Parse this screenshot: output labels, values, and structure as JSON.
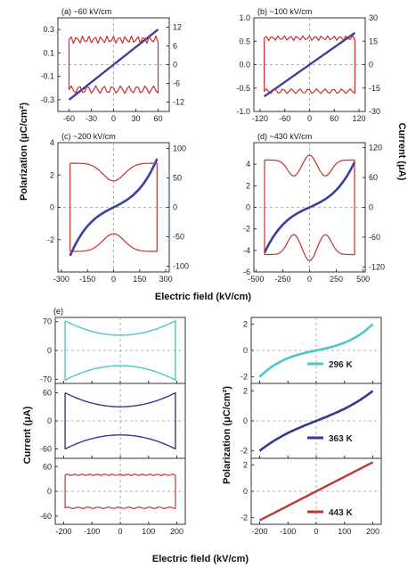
{
  "colors": {
    "blue": "#3b3fa0",
    "red": "#c0332f",
    "cyan": "#4cc6c9",
    "navy": "#363a8f",
    "brick": "#b83a35",
    "left_axis": "#2f3aa0",
    "right_axis": "#c0332f"
  },
  "shared_labels": {
    "top_xlabel": "Electric field (kV/cm)",
    "top_ylabel_left": "Polarization (μC/cm²)",
    "top_ylabel_right": "Current (μA)",
    "bottom_xlabel": "Electric field (kV/cm)",
    "bottom_ylabel_left": "Current (μA)",
    "bottom_ylabel_right": "Polarization (μC/cm²)",
    "panel_e_label": "(e)"
  },
  "chart_data": [
    {
      "id": "a",
      "type": "line",
      "title": "(a) ~60 kV/cm",
      "xlim": [
        -75,
        75
      ],
      "xticks": [
        -60,
        -30,
        0,
        30,
        60
      ],
      "ylim_left": [
        -0.4,
        0.4
      ],
      "yticks_left": [
        -0.3,
        -0.1,
        0.1,
        0.3
      ],
      "yticks_left_labels": [
        "-0.3",
        "-0.1",
        "0.1",
        "0.3"
      ],
      "ylim_right": [
        -15,
        15
      ],
      "yticks_right": [
        -12,
        -6,
        0,
        6,
        12
      ],
      "series": [
        {
          "axis": "left",
          "color": "blue",
          "shape": "linear",
          "x": [
            -60,
            60
          ],
          "y": [
            -0.3,
            0.3
          ]
        },
        {
          "axis": "right",
          "color": "red",
          "shape": "box",
          "emax": 60,
          "imax": 8,
          "ripple": 1.2
        }
      ]
    },
    {
      "id": "b",
      "type": "line",
      "title": "(b) ~100 kV/cm",
      "xlim": [
        -135,
        135
      ],
      "xticks": [
        -120,
        -60,
        0,
        60,
        120
      ],
      "ylim_left": [
        -1,
        1
      ],
      "yticks_left": [
        -1,
        -0.5,
        0,
        0.5,
        1
      ],
      "yticks_left_labels": [
        "-1.0",
        "-0.5",
        "0.0",
        "0.5",
        "1.0"
      ],
      "ylim_right": [
        -30,
        30
      ],
      "yticks_right": [
        -30,
        -15,
        0,
        15,
        30
      ],
      "series": [
        {
          "axis": "left",
          "color": "blue",
          "shape": "linear",
          "x": [
            -110,
            110
          ],
          "y": [
            -0.68,
            0.68
          ]
        },
        {
          "axis": "right",
          "color": "red",
          "shape": "box",
          "emax": 110,
          "imax": 17,
          "ripple": 1.5
        }
      ]
    },
    {
      "id": "c",
      "type": "line",
      "title": "(c) ~200 kV/cm",
      "xlim": [
        -320,
        320
      ],
      "xticks": [
        -300,
        -150,
        0,
        150,
        300
      ],
      "ylim_left": [
        -4,
        4
      ],
      "yticks_left": [
        -2,
        0,
        2,
        4
      ],
      "yticks_left_labels": [
        "-2",
        "0",
        "2",
        "4"
      ],
      "ylim_right": [
        -110,
        110
      ],
      "yticks_right": [
        -100,
        -50,
        0,
        50,
        100
      ],
      "series": [
        {
          "axis": "left",
          "color": "blue",
          "shape": "scurve",
          "x": [
            -250,
            250
          ],
          "y": [
            -3,
            3
          ]
        },
        {
          "axis": "right",
          "color": "red",
          "shape": "bump",
          "emax": 250,
          "imax": 75,
          "bump": 30
        }
      ]
    },
    {
      "id": "d",
      "type": "line",
      "title": "(d) ~430 kV/cm",
      "xlim": [
        -520,
        520
      ],
      "xticks": [
        -500,
        -250,
        0,
        250,
        500
      ],
      "ylim_left": [
        -6,
        6
      ],
      "yticks_left": [
        -6,
        -4,
        -2,
        0,
        2,
        4
      ],
      "yticks_left_labels": [
        "-6",
        "-4",
        "-2",
        "0",
        "2",
        "4"
      ],
      "ylim_right": [
        -130,
        130
      ],
      "yticks_right": [
        -120,
        -60,
        0,
        60,
        120
      ],
      "series": [
        {
          "axis": "left",
          "color": "blue",
          "shape": "scurve",
          "x": [
            -420,
            420
          ],
          "y": [
            -4.2,
            4.2
          ]
        },
        {
          "axis": "right",
          "color": "red",
          "shape": "double",
          "emax": 420,
          "imax": 95,
          "bump": 40
        }
      ]
    },
    {
      "id": "e-current-296",
      "type": "line",
      "xlim": [
        -230,
        230
      ],
      "xticks": [
        -200,
        -100,
        0,
        100,
        200
      ],
      "ylim": [
        -80,
        80
      ],
      "yticks": [
        -70,
        0,
        70
      ],
      "series": [
        {
          "color": "cyan",
          "shape": "bow",
          "emax": 195,
          "imax": 72,
          "dip": 35
        }
      ]
    },
    {
      "id": "e-current-363",
      "type": "line",
      "xlim": [
        -230,
        230
      ],
      "xticks": [
        -200,
        -100,
        0,
        100,
        200
      ],
      "ylim": [
        -80,
        80
      ],
      "yticks": [
        -60,
        0,
        60
      ],
      "series": [
        {
          "color": "navy",
          "shape": "bow",
          "emax": 195,
          "imax": 60,
          "dip": 30
        }
      ]
    },
    {
      "id": "e-current-443",
      "type": "line",
      "xlim": [
        -230,
        230
      ],
      "xticks": [
        -200,
        -100,
        0,
        100,
        200
      ],
      "ylim": [
        -80,
        80
      ],
      "yticks": [
        -60,
        0,
        60
      ],
      "series": [
        {
          "color": "brick",
          "shape": "box",
          "emax": 195,
          "imax": 40,
          "ripple": 2
        }
      ]
    },
    {
      "id": "e-pol-296",
      "type": "line",
      "xlim": [
        -230,
        230
      ],
      "xticks": [
        -200,
        -100,
        0,
        100,
        200
      ],
      "ylim": [
        -2.5,
        2.5
      ],
      "yticks": [
        -2,
        0,
        2
      ],
      "series": [
        {
          "name": "296 K",
          "color": "cyan",
          "shape": "scurve",
          "x": [
            -200,
            200
          ],
          "y": [
            -2,
            2
          ]
        }
      ]
    },
    {
      "id": "e-pol-363",
      "type": "line",
      "xlim": [
        -230,
        230
      ],
      "xticks": [
        -200,
        -100,
        0,
        100,
        200
      ],
      "ylim": [
        -2.5,
        2.5
      ],
      "yticks": [
        -2,
        0,
        2
      ],
      "series": [
        {
          "name": "363 K",
          "color": "navy",
          "shape": "scurve_soft",
          "x": [
            -200,
            200
          ],
          "y": [
            -2,
            2
          ]
        }
      ]
    },
    {
      "id": "e-pol-443",
      "type": "line",
      "xlim": [
        -230,
        230
      ],
      "xticks": [
        -200,
        -100,
        0,
        100,
        200
      ],
      "ylim": [
        -2.5,
        2.5
      ],
      "yticks": [
        -2,
        0,
        2
      ],
      "series": [
        {
          "name": "443 K",
          "color": "brick",
          "shape": "linear",
          "x": [
            -200,
            200
          ],
          "y": [
            -2.2,
            2.2
          ]
        }
      ]
    }
  ],
  "bottom_xtick_labels": [
    "-200",
    "-100",
    "0",
    "100",
    "200"
  ],
  "bottom_right_xtick_labels": [
    "-200",
    "-100",
    "0",
    "100",
    "200"
  ]
}
